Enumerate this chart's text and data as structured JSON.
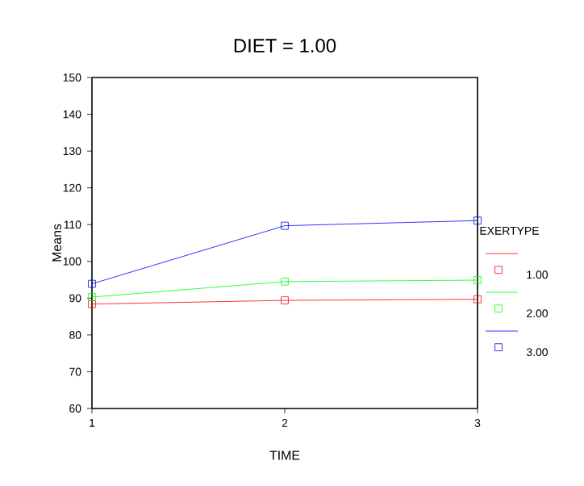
{
  "chart_data": {
    "type": "line",
    "title": "DIET =     1.00",
    "xlabel": "TIME",
    "ylabel": "Means",
    "legend_title": "EXERTYPE",
    "x": [
      1,
      2,
      3
    ],
    "xlim": [
      1,
      3
    ],
    "xticks": [
      1,
      2,
      3
    ],
    "ylim": [
      60,
      150
    ],
    "yticks": [
      60,
      70,
      80,
      90,
      100,
      110,
      120,
      130,
      140,
      150
    ],
    "marker": "square",
    "grid": false,
    "legend": "right",
    "series": [
      {
        "name": "1.00",
        "color": "#ff0000",
        "values": [
          88.4,
          89.4,
          89.7
        ]
      },
      {
        "name": "2.00",
        "color": "#00ff00",
        "values": [
          90.3,
          94.5,
          94.9
        ]
      },
      {
        "name": "3.00",
        "color": "#0000ff",
        "values": [
          93.9,
          109.7,
          111.1
        ]
      }
    ]
  }
}
